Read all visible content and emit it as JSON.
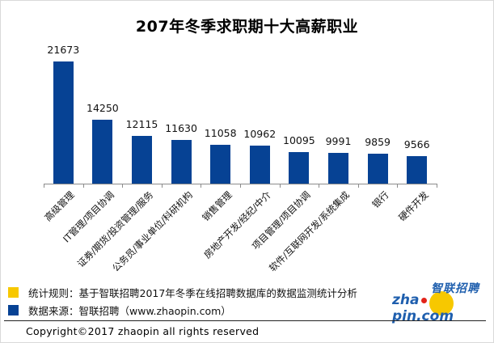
{
  "title": "207年冬季求职期十大高薪职业",
  "chart_data": {
    "type": "bar",
    "title": "207年冬季求职期十大高薪职业",
    "xlabel": "",
    "ylabel": "",
    "grid": false,
    "legend": "none",
    "categories": [
      "高级管理",
      "IT管理/项目协调",
      "证券/期货/投资管理/服务",
      "公务员/事业单位/科研机构",
      "销售管理",
      "房地产开发/经纪/中介",
      "项目管理/项目协调",
      "软件/互联网开发/系统集成",
      "银行",
      "硬件开发"
    ],
    "values": [
      21673,
      14250,
      12115,
      11630,
      11058,
      10962,
      10095,
      9991,
      9859,
      9566
    ],
    "value_labels": [
      "21673",
      "14250",
      "12115",
      "11630",
      "11058",
      "10962",
      "10095",
      "9991",
      "9859",
      "9566"
    ],
    "bar_color": "#064294",
    "ylim": [
      6047,
      25400
    ]
  },
  "notes": [
    {
      "swatch_color": "#f7c800",
      "text": "统计规则：基于智联招聘2017年冬季在线招聘数据库的数据监测统计分析"
    },
    {
      "swatch_color": "#064294",
      "text": "数据来源：智联招聘（www.zhaopin.com）"
    }
  ],
  "logo": {
    "cn": "智联招聘",
    "en_left": "zha",
    "en_right": "pin.com"
  },
  "copyright": "Copyright©2017 zhaopin all rights reserved"
}
